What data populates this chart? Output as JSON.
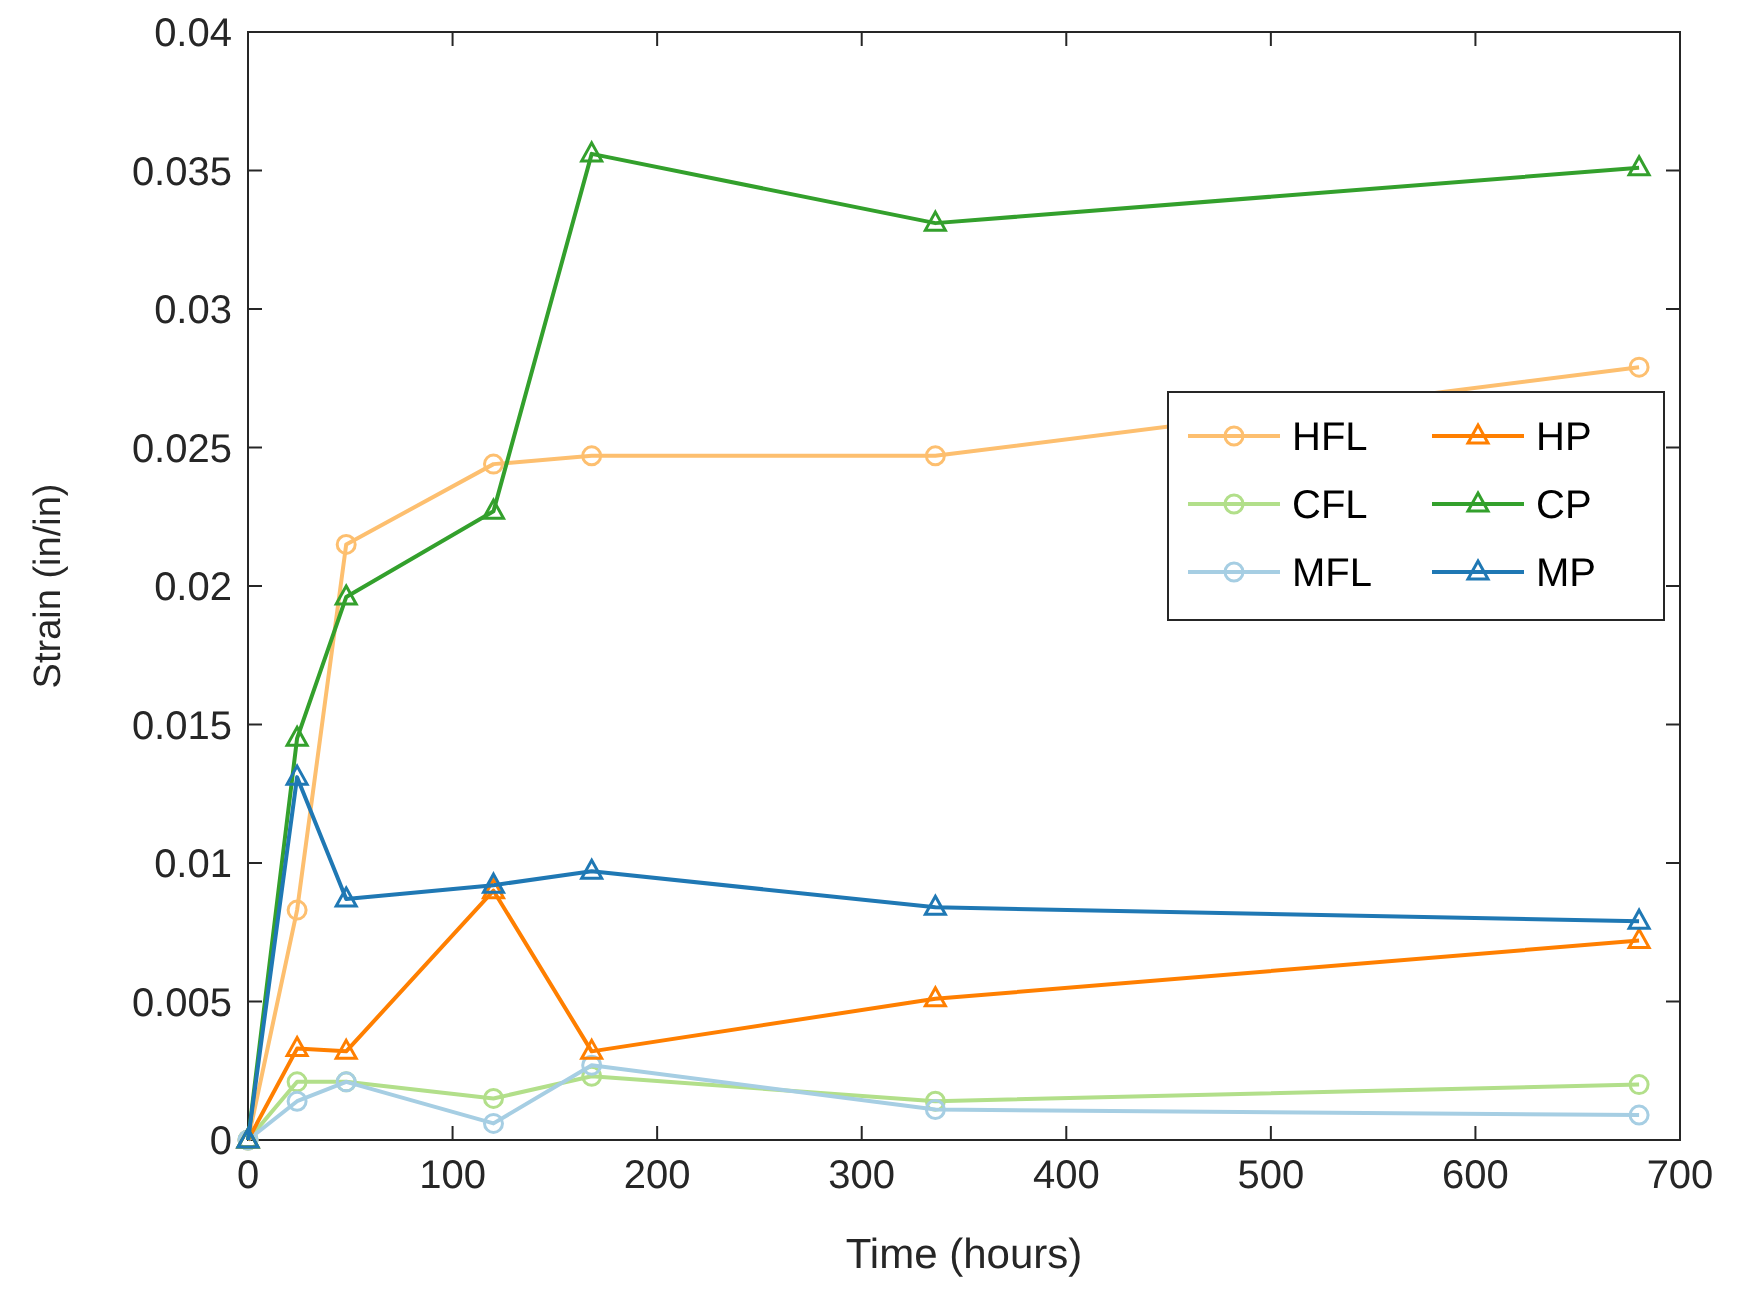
{
  "chart_data": {
    "type": "line",
    "xlabel": "Time (hours)",
    "ylabel": "Strain (in/in)",
    "x": [
      0,
      24,
      48,
      120,
      168,
      336,
      680
    ],
    "xlim": [
      0,
      700
    ],
    "xticks": [
      0,
      100,
      200,
      300,
      400,
      500,
      600,
      700
    ],
    "ylim": [
      0,
      0.04
    ],
    "yticks": [
      0,
      0.005,
      0.01,
      0.015,
      0.02,
      0.025,
      0.03,
      0.035,
      0.04
    ],
    "grid": false,
    "legend": "right",
    "line_style": "solid",
    "series": [
      {
        "name": "HFL",
        "color": "#fdbf6f",
        "marker": "circle",
        "values": [
          0,
          0.0083,
          0.0215,
          0.0244,
          0.0247,
          0.0247,
          0.0279
        ]
      },
      {
        "name": "CFL",
        "color": "#b2df8a",
        "marker": "circle",
        "values": [
          0,
          0.0021,
          0.0021,
          0.0015,
          0.0023,
          0.0014,
          0.002
        ]
      },
      {
        "name": "MFL",
        "color": "#a6cee3",
        "marker": "circle",
        "values": [
          0,
          0.0014,
          0.0021,
          0.0006,
          0.0027,
          0.0011,
          0.0009
        ]
      },
      {
        "name": "HP",
        "color": "#ff7f00",
        "marker": "triangle",
        "values": [
          0,
          0.0033,
          0.0032,
          0.009,
          0.0032,
          0.0051,
          0.0072
        ]
      },
      {
        "name": "CP",
        "color": "#33a02c",
        "marker": "triangle",
        "values": [
          0,
          0.0145,
          0.0196,
          0.0227,
          0.0356,
          0.0331,
          0.0351
        ]
      },
      {
        "name": "MP",
        "color": "#1f78b4",
        "marker": "triangle",
        "values": [
          0,
          0.0131,
          0.0087,
          0.0092,
          0.0097,
          0.0084,
          0.0079
        ]
      }
    ]
  }
}
